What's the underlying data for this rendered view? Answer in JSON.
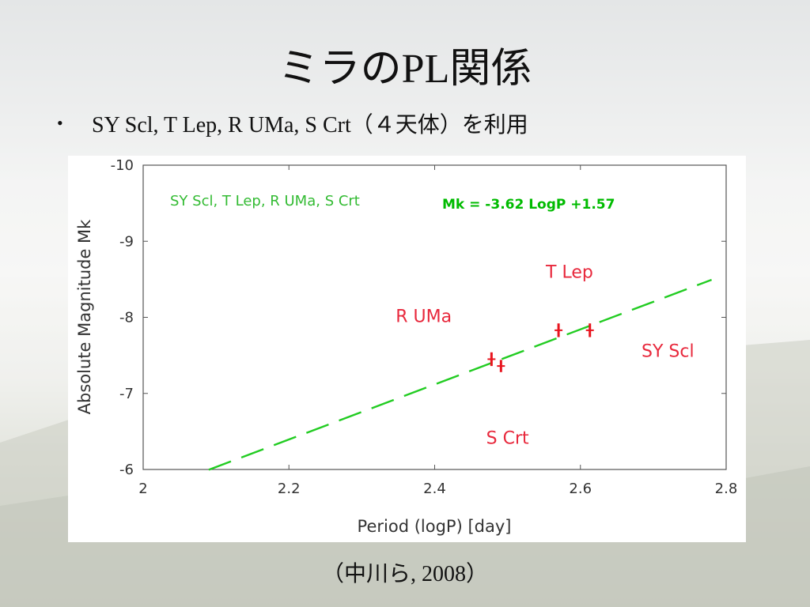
{
  "slide": {
    "title": "ミラのPL関係",
    "bullet_marker": "•",
    "bullet_text": "SY Scl, T Lep, R UMa, S Crt（４天体）を利用",
    "citation": "（中川ら, 2008）"
  },
  "chart_data": {
    "type": "scatter",
    "xlabel": "Period (logP) [day]",
    "ylabel": "Absolute Magnitude Mk",
    "xlim": [
      2,
      2.8
    ],
    "ylim": [
      -6,
      -10
    ],
    "y_inverted": true,
    "x_ticks": [
      2,
      2.2,
      2.4,
      2.6,
      2.8
    ],
    "x_tick_labels": [
      "2",
      "2.2",
      "2.4",
      "2.6",
      "2.8"
    ],
    "y_ticks": [
      -6,
      -7,
      -8,
      -9,
      -10
    ],
    "y_tick_labels": [
      "-6",
      "-7",
      "-8",
      "-9",
      "-10"
    ],
    "grid": false,
    "legend_text": "SY Scl, T Lep, R UMa, S Crt",
    "fit_label": "Mk = -3.62 LogP +1.57",
    "fit": {
      "slope": -3.62,
      "intercept": 1.57,
      "x_range": [
        2.09,
        2.78
      ],
      "style": "dashed"
    },
    "points": [
      {
        "x": 2.478,
        "y": -7.45,
        "yerr": 0.09
      },
      {
        "x": 2.491,
        "y": -7.36,
        "yerr": 0.08
      },
      {
        "x": 2.57,
        "y": -7.83,
        "yerr": 0.09
      },
      {
        "x": 2.613,
        "y": -7.83,
        "yerr": 0.09
      }
    ],
    "star_labels": [
      {
        "text": "T Lep",
        "x": 2.585,
        "y": -8.52
      },
      {
        "text": "R UMa",
        "x": 2.385,
        "y": -7.94
      },
      {
        "text": "SY Scl",
        "x": 2.72,
        "y": -7.48
      },
      {
        "text": "S Crt",
        "x": 2.5,
        "y": -6.34
      }
    ],
    "colors": {
      "fit": "#22cc22",
      "legend": "#33bb33",
      "fit_label": "#00bb00",
      "points": "#e8141e",
      "star_labels": "#e8283c",
      "axes": "#555555",
      "tick_text": "#333333"
    }
  }
}
